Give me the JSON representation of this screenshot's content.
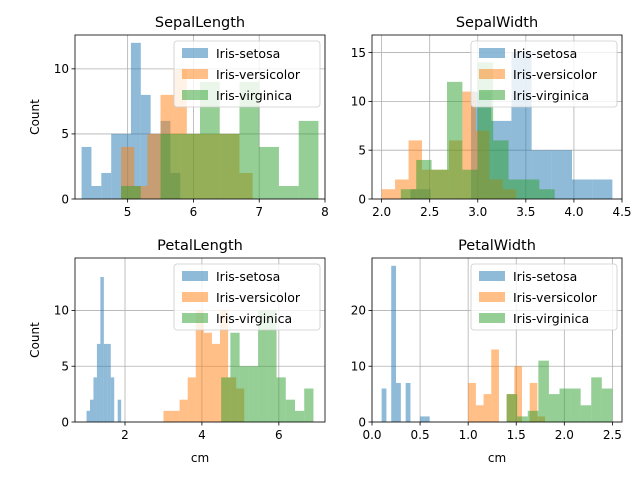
{
  "chart_data": [
    {
      "type": "histogram",
      "title": "SepalLength",
      "xlabel": "",
      "ylabel": "Count",
      "xlim": [
        4.2,
        8.0
      ],
      "ylim": [
        0,
        12.6
      ],
      "xticks": [
        5,
        6,
        7,
        8
      ],
      "yticks": [
        0,
        5,
        10
      ],
      "grid": true,
      "legend": "top-right",
      "series": [
        {
          "name": "Iris-setosa",
          "color": "#1f77b4",
          "bins": [
            4.3,
            4.45,
            4.6,
            4.75,
            4.9,
            5.05,
            5.2,
            5.35,
            5.5,
            5.65,
            5.8
          ],
          "counts": [
            4,
            1,
            2,
            5,
            5,
            12,
            8,
            5,
            6,
            2
          ]
        },
        {
          "name": "Iris-versicolor",
          "color": "#ff7f0e",
          "bins": [
            4.9,
            5.1,
            5.3,
            5.5,
            5.7,
            5.9,
            6.1,
            6.3,
            6.5,
            6.7,
            6.9,
            7.1
          ],
          "counts": [
            4,
            1,
            5,
            8,
            10,
            5,
            5,
            5,
            5,
            2,
            0
          ]
        },
        {
          "name": "Iris-virginica",
          "color": "#2ca02c",
          "bins": [
            4.9,
            5.2,
            5.5,
            5.8,
            6.1,
            6.4,
            6.7,
            7.0,
            7.3,
            7.6,
            7.9
          ],
          "counts": [
            1,
            0,
            5,
            5,
            9,
            5,
            9,
            4,
            1,
            6
          ]
        }
      ]
    },
    {
      "type": "histogram",
      "title": "SepalWidth",
      "xlabel": "",
      "ylabel": "",
      "xlim": [
        1.9,
        4.5
      ],
      "ylim": [
        0,
        16.8
      ],
      "xticks": [
        2.0,
        2.5,
        3.0,
        3.5,
        4.0,
        4.5
      ],
      "xticklabels": [
        "2.0",
        "2.5",
        "3.0",
        "3.5",
        "4.0",
        "4.5"
      ],
      "yticks": [
        0,
        5,
        10,
        15
      ],
      "grid": true,
      "legend": "top-right",
      "series": [
        {
          "name": "Iris-setosa",
          "color": "#1f77b4",
          "bins": [
            2.3,
            2.51,
            2.72,
            2.93,
            3.14,
            3.35,
            3.56,
            3.77,
            3.98,
            4.19,
            4.4
          ],
          "counts": [
            1,
            0,
            0,
            11,
            8,
            15,
            5,
            5,
            2,
            2
          ]
        },
        {
          "name": "Iris-versicolor",
          "color": "#ff7f0e",
          "bins": [
            2.0,
            2.14,
            2.28,
            2.42,
            2.56,
            2.7,
            2.84,
            2.98,
            3.12,
            3.26,
            3.4
          ],
          "counts": [
            1,
            2,
            6,
            3,
            3,
            6,
            11,
            7,
            2,
            1
          ]
        },
        {
          "name": "Iris-virginica",
          "color": "#2ca02c",
          "bins": [
            2.2,
            2.36,
            2.52,
            2.68,
            2.84,
            3.0,
            3.16,
            3.32,
            3.48,
            3.64,
            3.8
          ],
          "counts": [
            1,
            4,
            3,
            12,
            3,
            14,
            6,
            2,
            2,
            1
          ]
        }
      ]
    },
    {
      "type": "histogram",
      "title": "PetalLength",
      "xlabel": "cm",
      "ylabel": "Count",
      "xlim": [
        0.7,
        7.2
      ],
      "ylim": [
        0,
        14.7
      ],
      "xticks": [
        2,
        4,
        6
      ],
      "yticks": [
        0,
        5,
        10
      ],
      "grid": true,
      "legend": "top-right",
      "series": [
        {
          "name": "Iris-setosa",
          "color": "#1f77b4",
          "bins": [
            1.0,
            1.09,
            1.18,
            1.27,
            1.36,
            1.45,
            1.54,
            1.63,
            1.72,
            1.81,
            1.9
          ],
          "counts": [
            1,
            2,
            4,
            7,
            13,
            7,
            7,
            4,
            0,
            2
          ]
        },
        {
          "name": "Iris-versicolor",
          "color": "#ff7f0e",
          "bins": [
            3.0,
            3.21,
            3.42,
            3.63,
            3.84,
            4.05,
            4.26,
            4.47,
            4.68,
            4.89,
            5.1
          ],
          "counts": [
            1,
            1,
            2,
            4,
            10,
            8,
            7,
            10,
            4,
            3
          ]
        },
        {
          "name": "Iris-virginica",
          "color": "#2ca02c",
          "bins": [
            4.5,
            4.74,
            4.98,
            5.22,
            5.46,
            5.7,
            5.94,
            6.18,
            6.42,
            6.66,
            6.9
          ],
          "counts": [
            4,
            8,
            5,
            5,
            10,
            10,
            4,
            2,
            1,
            3
          ]
        }
      ]
    },
    {
      "type": "histogram",
      "title": "PetalWidth",
      "xlabel": "cm",
      "ylabel": "",
      "xlim": [
        0.0,
        2.6
      ],
      "ylim": [
        0,
        29.4
      ],
      "xticks": [
        0.0,
        0.5,
        1.0,
        1.5,
        2.0,
        2.5
      ],
      "xticklabels": [
        "0.0",
        "0.5",
        "1.0",
        "1.5",
        "2.0",
        "2.5"
      ],
      "yticks": [
        0,
        10,
        20
      ],
      "grid": true,
      "legend": "top-right",
      "series": [
        {
          "name": "Iris-setosa",
          "color": "#1f77b4",
          "bins": [
            0.1,
            0.15,
            0.2,
            0.25,
            0.3,
            0.35,
            0.4,
            0.45,
            0.5,
            0.55,
            0.6
          ],
          "counts": [
            6,
            0,
            28,
            7,
            0,
            7,
            0,
            0,
            1,
            1
          ]
        },
        {
          "name": "Iris-versicolor",
          "color": "#ff7f0e",
          "bins": [
            1.0,
            1.08,
            1.16,
            1.24,
            1.32,
            1.4,
            1.48,
            1.56,
            1.64,
            1.72,
            1.8
          ],
          "counts": [
            7,
            3,
            5,
            13,
            0,
            5,
            10,
            0,
            7,
            1
          ]
        },
        {
          "name": "Iris-virginica",
          "color": "#2ca02c",
          "bins": [
            1.4,
            1.51,
            1.62,
            1.73,
            1.84,
            1.95,
            2.06,
            2.17,
            2.28,
            2.39,
            2.5
          ],
          "counts": [
            5,
            1,
            2,
            11,
            5,
            6,
            6,
            3,
            8,
            6
          ]
        }
      ]
    }
  ]
}
